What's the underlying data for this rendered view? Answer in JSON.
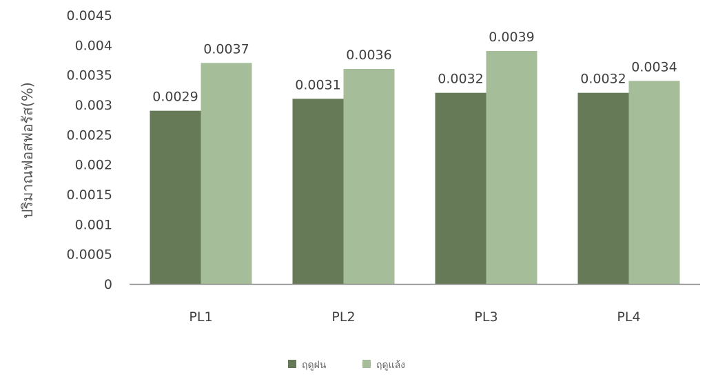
{
  "chart_data": {
    "type": "bar",
    "categories": [
      "PL1",
      "PL2",
      "PL3",
      "PL4"
    ],
    "series": [
      {
        "name": "ฤดูฝน",
        "values": [
          0.0029,
          0.0031,
          0.0032,
          0.0032
        ],
        "labels": [
          "0.0029",
          "0.0031",
          "0.0032",
          "0.0032"
        ],
        "color": "#667a58"
      },
      {
        "name": "ฤดูแล้ง",
        "values": [
          0.0037,
          0.0036,
          0.0039,
          0.0034
        ],
        "labels": [
          "0.0037",
          "0.0036",
          "0.0039",
          "0.0034"
        ],
        "color": "#a6bd99"
      }
    ],
    "ylabel": "ปริมาณฟอสฟอรัส(%)",
    "xlabel": "",
    "ylim": [
      0,
      0.0045
    ],
    "yticks": [
      "0",
      "0.0005",
      "0.001",
      "0.0015",
      "0.002",
      "0.0025",
      "0.003",
      "0.0035",
      "0.004",
      "0.0045"
    ],
    "grid": false,
    "legend": "bottom",
    "axis_color": "#8c8c8c"
  }
}
